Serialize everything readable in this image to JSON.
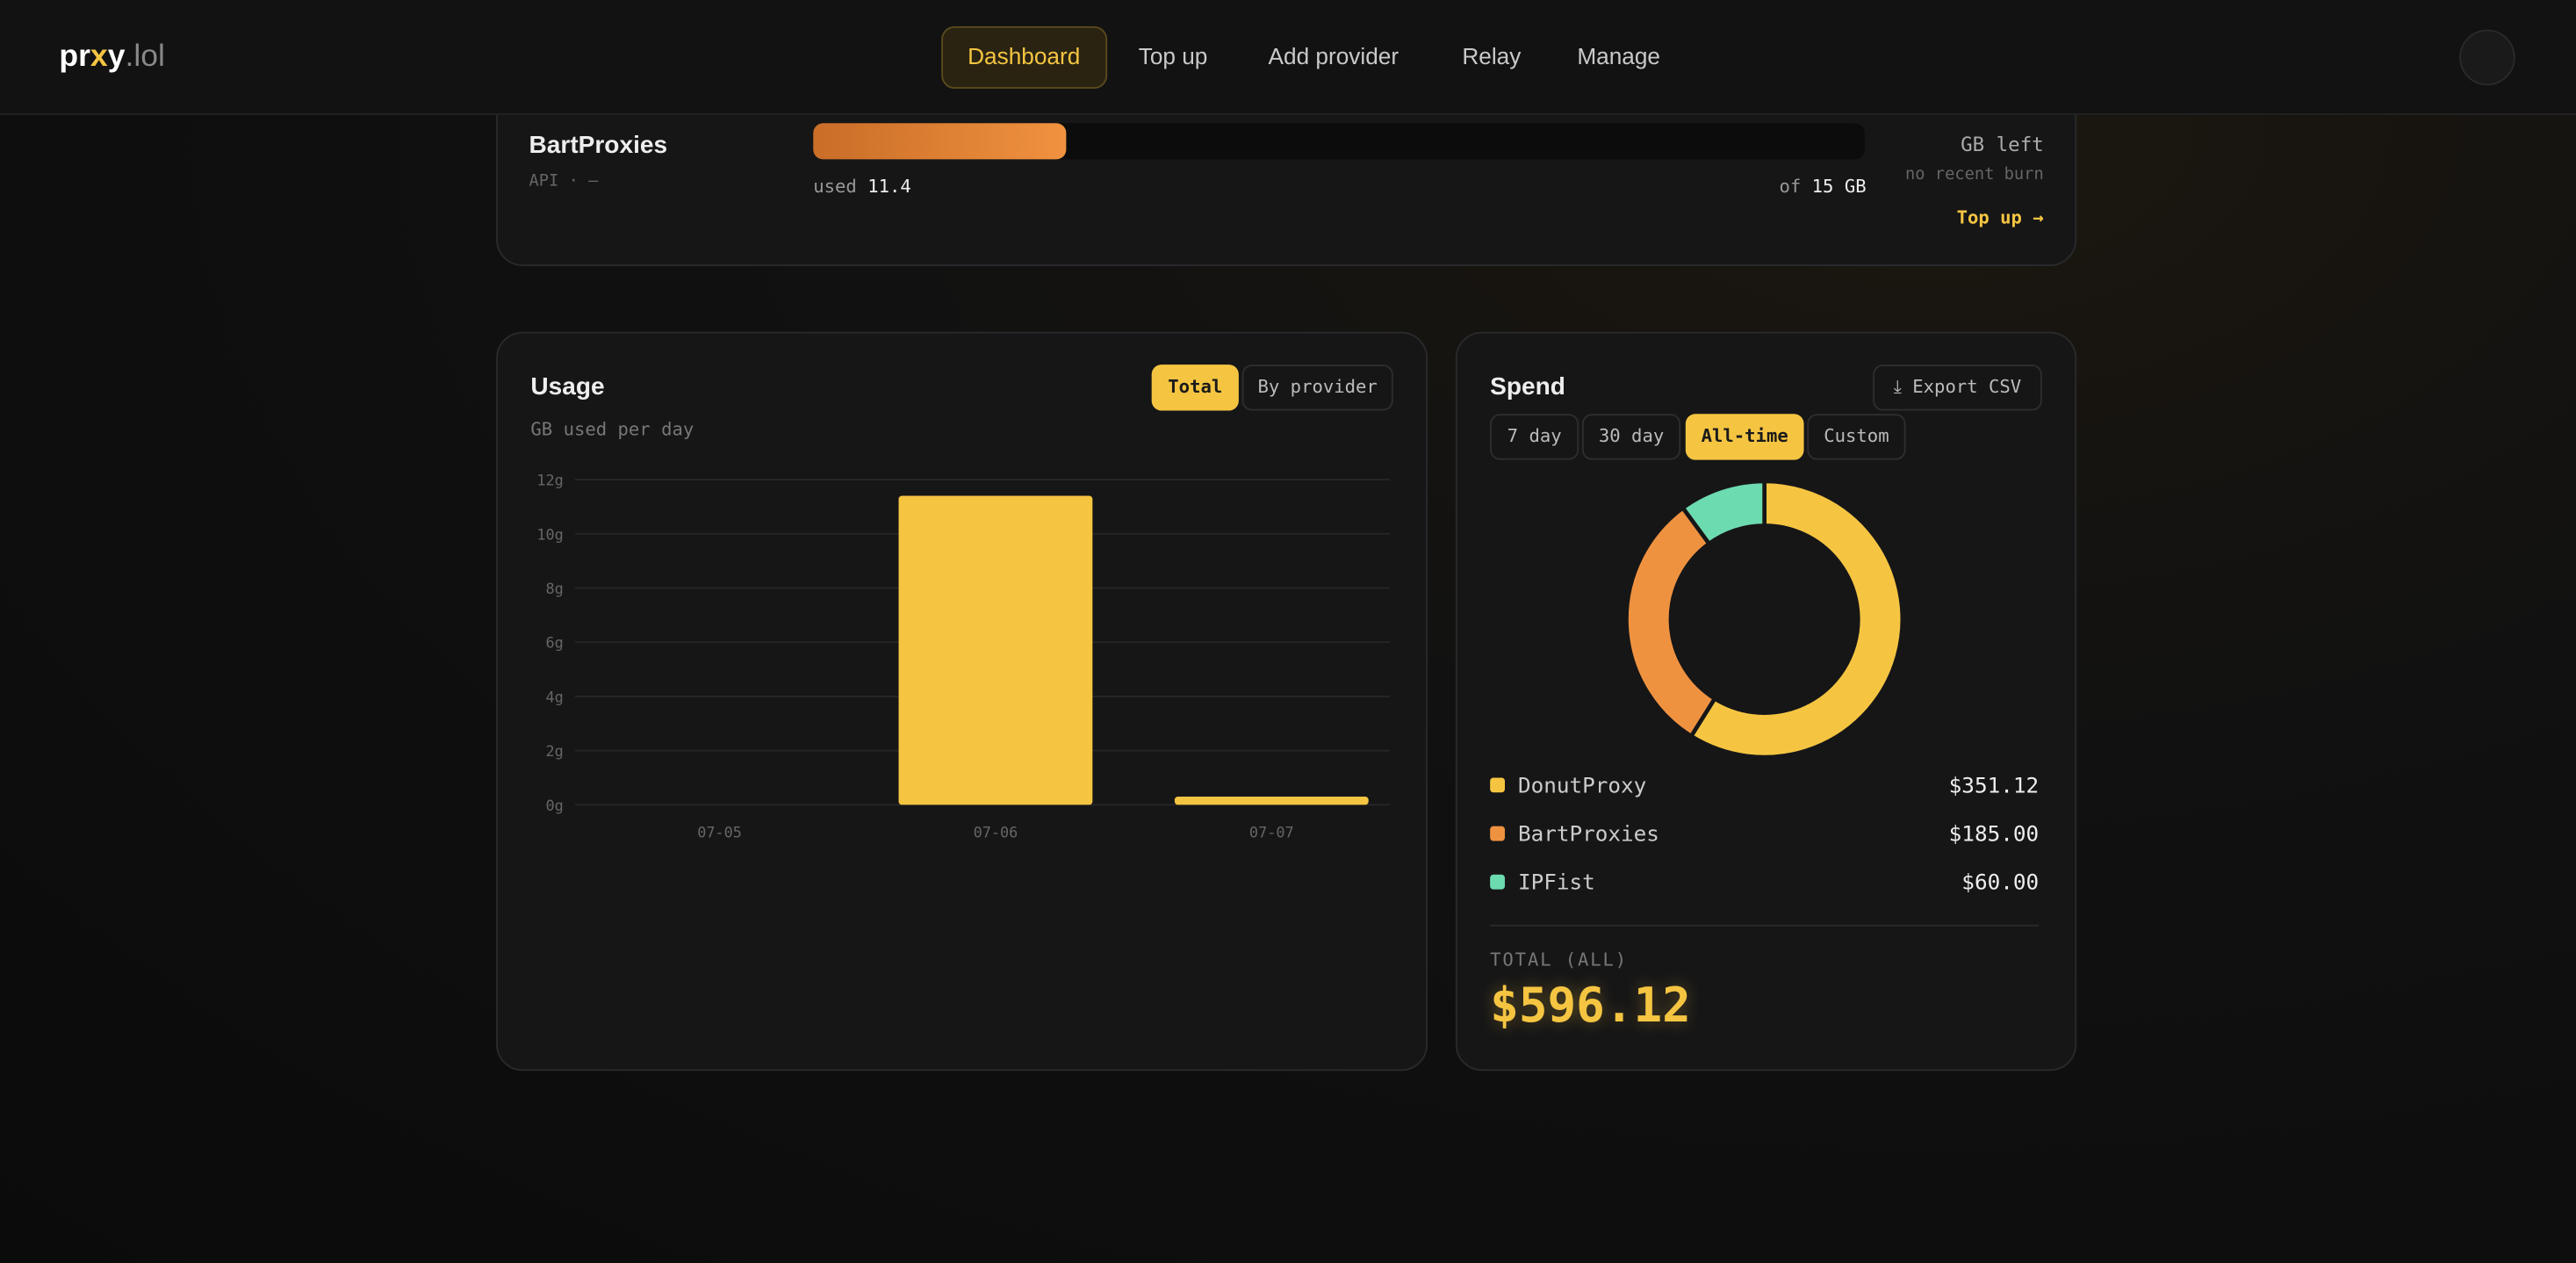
{
  "nav": {
    "logo": [
      "pr",
      "x",
      "y",
      ".lol"
    ],
    "items": [
      "Dashboard",
      "Top up",
      "Add provider",
      "Relay",
      "Manage"
    ]
  },
  "provider": {
    "name": "BartProxies",
    "meta": "API · —",
    "used_label": "used",
    "used": 11.4,
    "of_label": "of",
    "capacity": 15,
    "unit": "GB",
    "left_unit": "GB left",
    "burn": "no recent burn",
    "action": "Top up →"
  },
  "usage": {
    "tabs": [
      "Total",
      "By provider"
    ],
    "chart_data": {
      "type": "bar",
      "title": "Usage",
      "subtitle": "GB used per day",
      "categories": [
        "07-05",
        "07-06",
        "07-07"
      ],
      "values": [
        0,
        11.4,
        0.3
      ],
      "color": "#f5c542",
      "ylim": [
        0,
        12
      ],
      "yticks": [
        {
          "value": 0,
          "label": "0g"
        },
        {
          "value": 2,
          "label": "2g"
        },
        {
          "value": 4,
          "label": "4g"
        },
        {
          "value": 6,
          "label": "6g"
        },
        {
          "value": 8,
          "label": "8g"
        },
        {
          "value": 10,
          "label": "10g"
        },
        {
          "value": 12,
          "label": "12g"
        }
      ],
      "grid": true
    }
  },
  "spend": {
    "export": "Export CSV",
    "ranges": [
      "7 day",
      "30 day",
      "All-time",
      "Custom"
    ],
    "chart_data": {
      "type": "pie",
      "title": "Spend",
      "categories": [
        "DonutProxy",
        "BartProxies",
        "IPFist"
      ],
      "values": [
        351.12,
        185,
        60
      ],
      "value_labels": [
        "$351.12",
        "$185.00",
        "$60.00"
      ],
      "colors": [
        "#f5c542",
        "#ef9240",
        "#6ddbb0"
      ]
    },
    "total_label": "TOTAL (ALL)",
    "total": "$596.12"
  }
}
